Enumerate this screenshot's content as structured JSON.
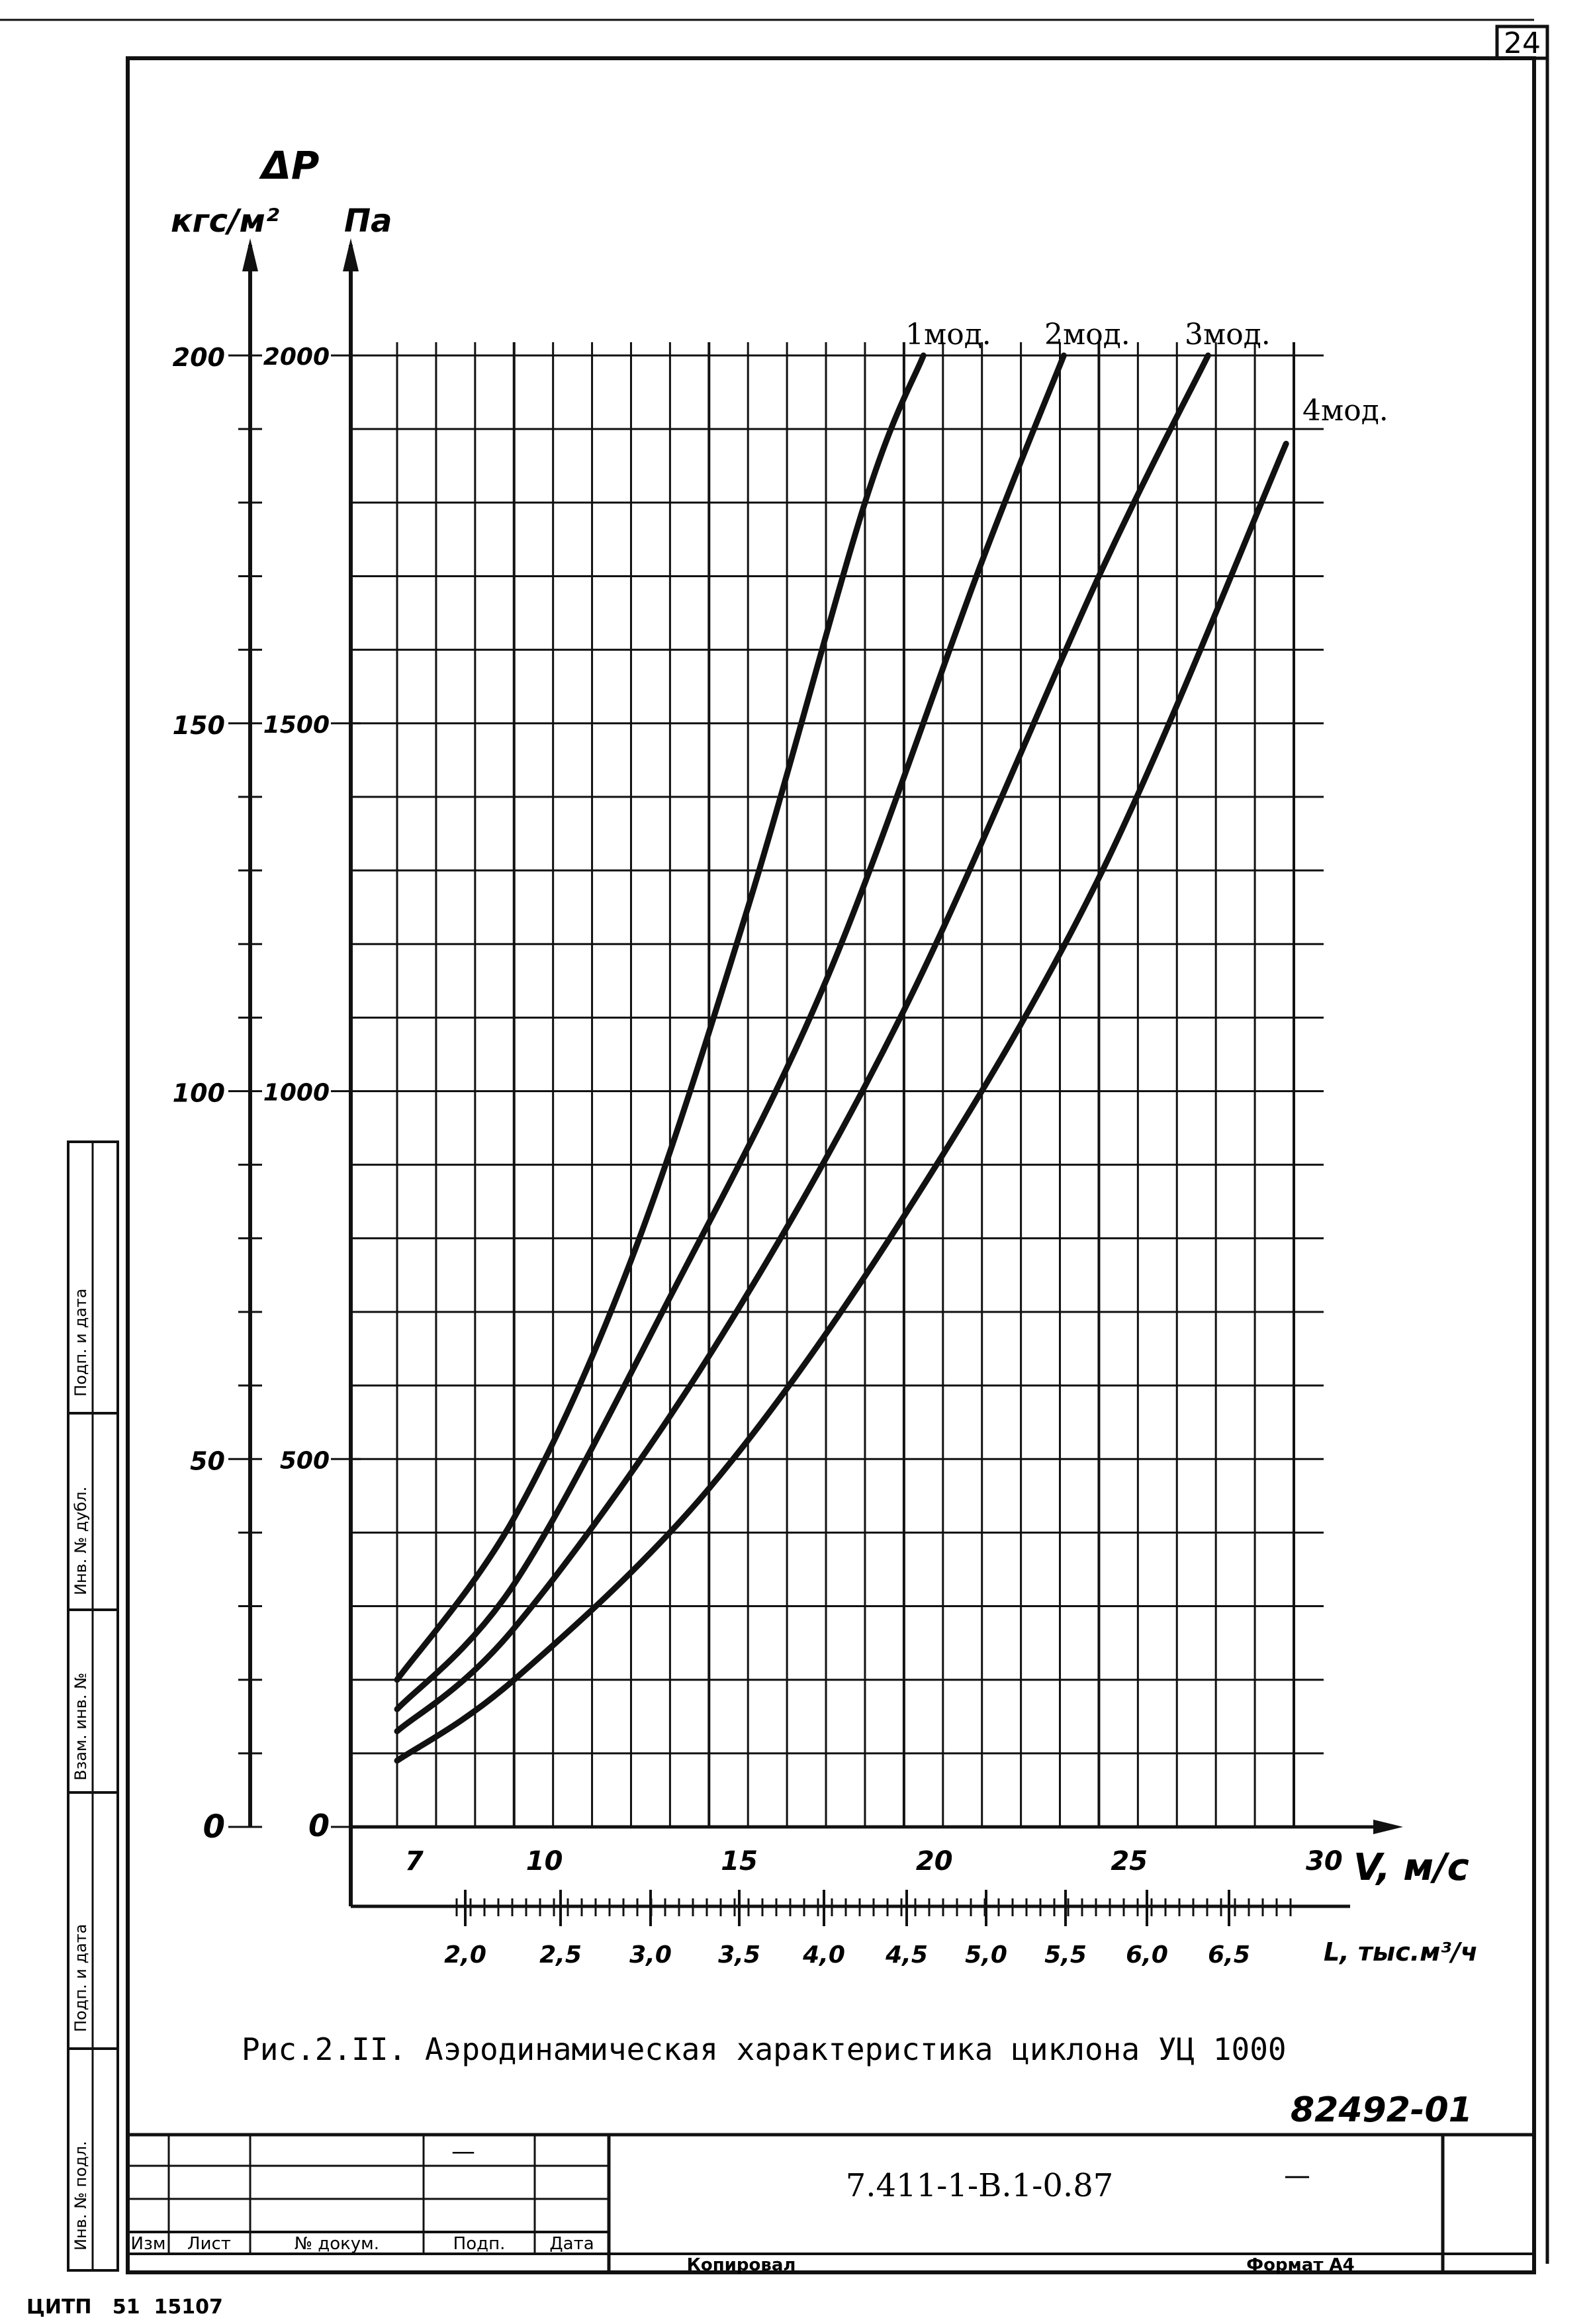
{
  "sheet": {
    "page_number": "24",
    "figure_number": "82492-01",
    "doc_code": "7.411-1-В.1-0.87",
    "dash": "—",
    "copy_label": "Копировал",
    "format_label": "Формат А4",
    "printer_code": "ЦИТП   51  15107",
    "stamp_headers": [
      "Изм",
      "Лист",
      "№ докум.",
      "Подп.",
      "Дата"
    ],
    "side_labels": [
      "Инв. № подл.",
      "Подп. и дата",
      "Взам. инв. №",
      "Инв. № дубл.",
      "Подп. и дата"
    ]
  },
  "chart_data": {
    "type": "line",
    "title": "",
    "caption": "Рис.2.II. Аэродинамическая характеристика циклона УЦ 1000",
    "ylabel": "ΔP",
    "y_units_kgf": "кгс/м²",
    "y_units_pa": "Па",
    "ylim_pa": [
      0,
      2000
    ],
    "yticks_pa": [
      "0",
      "500",
      "1000",
      "1500",
      "2000"
    ],
    "yticks_kgf": [
      "0",
      "50",
      "100",
      "150",
      "200"
    ],
    "xlabel": "V, м/с",
    "xlim": [
      7,
      30
    ],
    "xticks": [
      "7",
      "10",
      "15",
      "20",
      "25",
      "30"
    ],
    "x2label": "L, тыс.м³/ч",
    "x2ticks": [
      "2,0",
      "2,5",
      "3,0",
      "3,5",
      "4,0",
      "4,5",
      "5,0",
      "5,5",
      "6,0",
      "6,5"
    ],
    "grid": true,
    "series": [
      {
        "name": "1мод.",
        "x": [
          7.0,
          10.0,
          13.0,
          16.0,
          19.0,
          20.5
        ],
        "y": [
          200,
          420,
          770,
          1250,
          1800,
          2000
        ]
      },
      {
        "name": "2мод.",
        "x": [
          7.0,
          10.0,
          14.0,
          18.0,
          22.0,
          24.1
        ],
        "y": [
          160,
          330,
          720,
          1150,
          1720,
          2000
        ]
      },
      {
        "name": "3мод.",
        "x": [
          7.0,
          10.0,
          15.0,
          20.0,
          25.0,
          27.8
        ],
        "y": [
          130,
          270,
          640,
          1110,
          1700,
          2000
        ]
      },
      {
        "name": "4мод.",
        "x": [
          7.0,
          10.0,
          15.0,
          20.0,
          25.0,
          29.8
        ],
        "y": [
          90,
          200,
          460,
          830,
          1290,
          1880
        ]
      }
    ]
  }
}
